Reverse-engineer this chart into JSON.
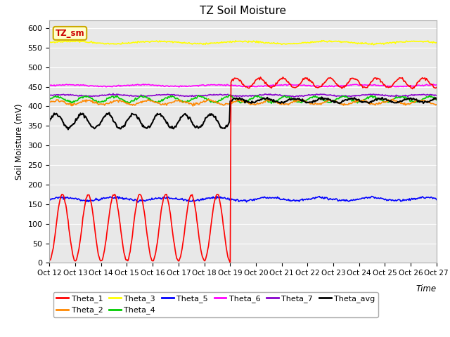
{
  "title": "TZ Soil Moisture",
  "ylabel": "Soil Moisture (mV)",
  "xlabel": "Time",
  "ylim": [
    0,
    620
  ],
  "yticks": [
    0,
    50,
    100,
    150,
    200,
    250,
    300,
    350,
    400,
    450,
    500,
    550,
    600
  ],
  "x_labels": [
    "Oct 12",
    "Oct 13",
    "Oct 14",
    "Oct 15",
    "Oct 16",
    "Oct 17",
    "Oct 18",
    "Oct 19",
    "Oct 20",
    "Oct 21",
    "Oct 22",
    "Oct 23",
    "Oct 24",
    "Oct 25",
    "Oct 26",
    "Oct 27"
  ],
  "n_points": 500,
  "n_days": 15,
  "transition_day": 7,
  "background_color": "#e8e8e8",
  "legend_box_color": "#ffffcc",
  "legend_box_edge": "#ccaa00",
  "series": {
    "Theta_1": {
      "color": "#ff0000",
      "linewidth": 1.2
    },
    "Theta_2": {
      "color": "#ff8800",
      "linewidth": 1.2
    },
    "Theta_3": {
      "color": "#ffff00",
      "linewidth": 1.2
    },
    "Theta_4": {
      "color": "#00cc00",
      "linewidth": 1.2
    },
    "Theta_5": {
      "color": "#0000ff",
      "linewidth": 1.2
    },
    "Theta_6": {
      "color": "#ff00ff",
      "linewidth": 1.2
    },
    "Theta_7": {
      "color": "#8800cc",
      "linewidth": 1.2
    },
    "Theta_avg": {
      "color": "#000000",
      "linewidth": 1.5
    }
  },
  "theta1_before_base": 90,
  "theta1_before_amp": 85,
  "theta1_before_freq": 1.0,
  "theta1_after_base": 460,
  "theta1_after_amp": 12,
  "theta1_after_freq": 1.1,
  "theta2_base": 410,
  "theta2_amp": 5,
  "theta2_freq": 0.85,
  "theta3_base": 563,
  "theta3_amp": 3,
  "theta3_freq": 0.3,
  "theta4_base": 418,
  "theta4_amp": 7,
  "theta4_freq": 0.9,
  "theta5_base": 163,
  "theta5_amp": 4,
  "theta5_freq": 0.5,
  "theta6_base": 453,
  "theta6_amp": 2,
  "theta6_freq": 0.35,
  "theta7_base": 428,
  "theta7_amp": 2,
  "theta7_freq": 0.5,
  "theta_avg_before_base": 362,
  "theta_avg_before_amp": 18,
  "theta_avg_before_freq": 1.0,
  "theta_avg_after_base": 415,
  "theta_avg_after_amp": 5,
  "theta_avg_after_freq": 0.9
}
